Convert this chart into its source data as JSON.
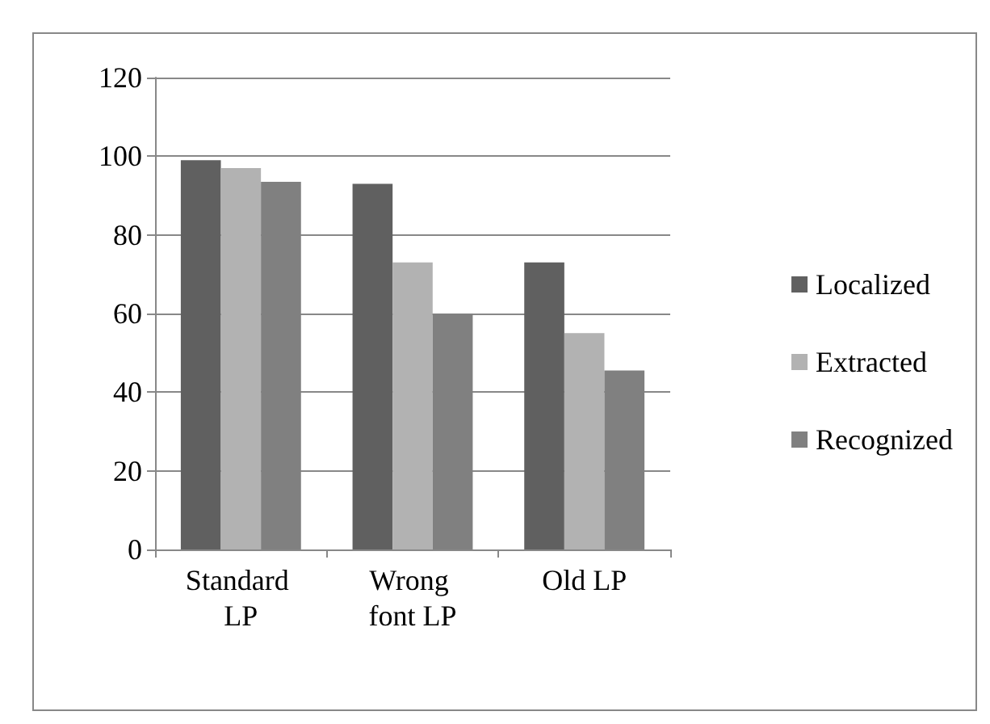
{
  "chart_data": {
    "type": "bar",
    "categories": [
      "Standard LP",
      "Wrong font LP",
      "Old LP"
    ],
    "series": [
      {
        "name": "Localized",
        "color": "#606060",
        "values": [
          99,
          93,
          73
        ]
      },
      {
        "name": "Extracted",
        "color": "#b2b2b2",
        "values": [
          97,
          73,
          55
        ]
      },
      {
        "name": "Recognized",
        "color": "#808080",
        "values": [
          93.5,
          60,
          45.5
        ]
      }
    ],
    "ylim": [
      0,
      120
    ],
    "yticks": [
      0,
      20,
      40,
      60,
      80,
      100,
      120
    ],
    "grid": "y",
    "legend": "right"
  }
}
